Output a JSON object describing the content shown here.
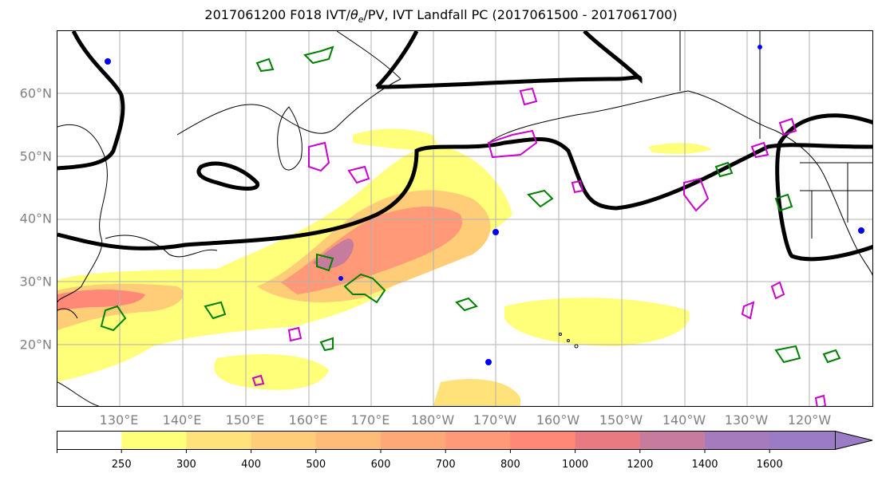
{
  "title_pre": "2017061200 F018 IVT/",
  "title_theta": "θ",
  "title_sub": "e",
  "title_post": "/PV, IVT Landfall PC (2017061500 - 2017061700)",
  "lat_labels": [
    "60°N",
    "50°N",
    "40°N",
    "30°N",
    "20°N"
  ],
  "lon_labels": [
    "130°E",
    "140°E",
    "150°E",
    "160°E",
    "170°E",
    "180°W",
    "170°W",
    "160°W",
    "150°W",
    "140°W",
    "130°W",
    "120°W"
  ],
  "colorbar": {
    "levels": [
      "250",
      "300",
      "400",
      "500",
      "600",
      "700",
      "800",
      "1000",
      "1200",
      "1400",
      "1600"
    ],
    "colors": [
      "#ffffff",
      "#ffff79",
      "#ffe27a",
      "#ffcc77",
      "#ffbb77",
      "#ffa877",
      "#ff9977",
      "#ff8877",
      "#ea7a82",
      "#c77c9e",
      "#a57bbd",
      "#9b7ac6"
    ]
  },
  "colors": {
    "contour_green": "#008000",
    "contour_magenta": "#cc00cc",
    "contour_blue": "#0000ff",
    "ivt_contour": "#000000",
    "grid": "#b0b0b0",
    "tick_label": "#808080"
  }
}
